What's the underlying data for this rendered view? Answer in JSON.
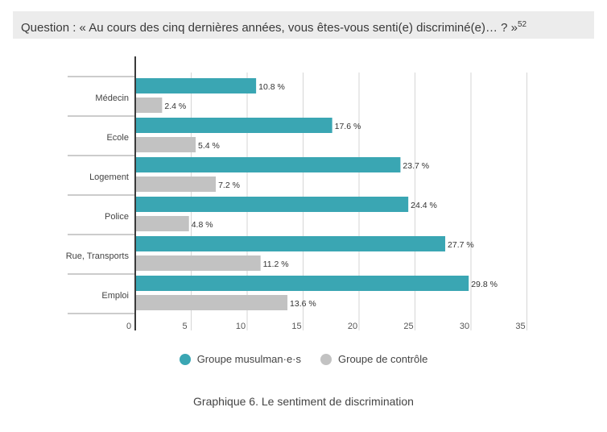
{
  "header": {
    "question": "Question : « Au cours des cinq dernières années, vous êtes-vous senti(e) discriminé(e)… ? »",
    "footnote": "52"
  },
  "chart_data": {
    "type": "bar",
    "orientation": "horizontal",
    "categories": [
      "Médecin",
      "Ecole",
      "Logement",
      "Police",
      "Rue, Transports",
      "Emploi"
    ],
    "series": [
      {
        "name": "Groupe musulman·e·s",
        "color": "#3aa6b3",
        "values": [
          10.8,
          17.6,
          23.7,
          24.4,
          27.7,
          29.8
        ],
        "labels": [
          "10.8 %",
          "17.6 %",
          "23.7 %",
          "24.4 %",
          "27.7 %",
          "29.8 %"
        ]
      },
      {
        "name": "Groupe de contrôle",
        "color": "#c2c2c2",
        "values": [
          2.4,
          5.4,
          7.2,
          4.8,
          11.2,
          13.6
        ],
        "labels": [
          "2.4 %",
          "5.4 %",
          "7.2 %",
          "4.8 %",
          "11.2 %",
          "13.6 %"
        ]
      }
    ],
    "xlim": [
      0,
      35
    ],
    "xticks": [
      "0",
      "5",
      "10",
      "15",
      "20",
      "25",
      "30",
      "35"
    ],
    "grid": true,
    "legend": "bottom-center"
  },
  "caption": "Graphique 6. Le sentiment de discrimination"
}
